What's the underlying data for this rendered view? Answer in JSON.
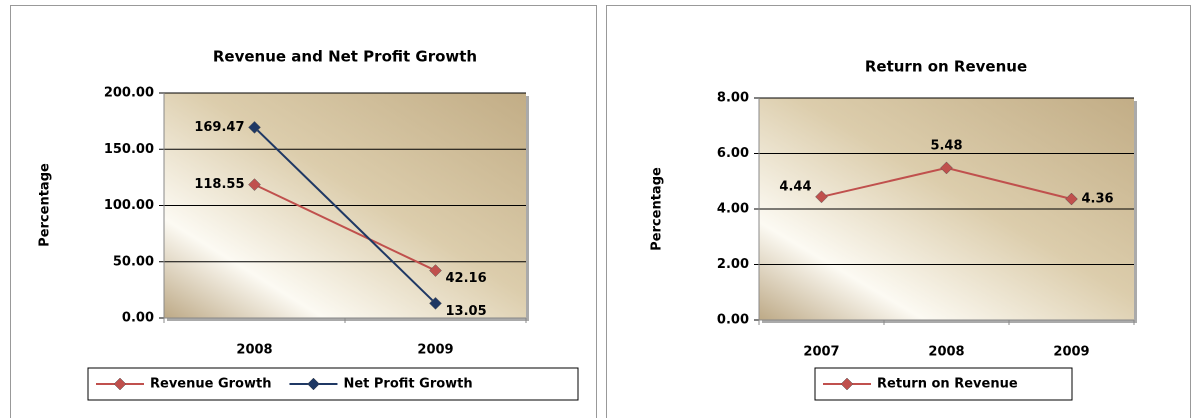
{
  "chart_data": [
    {
      "type": "line",
      "title": "Revenue and Net Profit Growth",
      "y_label": "Percentage",
      "categories": [
        "2008",
        "2009"
      ],
      "series": [
        {
          "name": "Revenue Growth",
          "color": "#c0504d",
          "values": [
            118.55,
            42.16
          ]
        },
        {
          "name": "Net Profit Growth",
          "color": "#1f3864",
          "values": [
            169.47,
            13.05
          ]
        }
      ],
      "ylim": [
        0,
        200
      ],
      "yticks": [
        {
          "value": 0,
          "label": "0.00"
        },
        {
          "value": 50,
          "label": "50.00"
        },
        {
          "value": 100,
          "label": "100.00"
        },
        {
          "value": 150,
          "label": "150.00"
        },
        {
          "value": 200,
          "label": "200.00"
        }
      ],
      "grid": true,
      "legend": "bottom"
    },
    {
      "type": "line",
      "title": "Return on Revenue",
      "y_label": "Percentage",
      "categories": [
        "2007",
        "2008",
        "2009"
      ],
      "series": [
        {
          "name": "Return on Revenue",
          "color": "#c0504d",
          "values": [
            4.44,
            5.48,
            4.36
          ]
        }
      ],
      "ylim": [
        0,
        8
      ],
      "yticks": [
        {
          "value": 0,
          "label": "0.00"
        },
        {
          "value": 2,
          "label": "2.00"
        },
        {
          "value": 4,
          "label": "4.00"
        },
        {
          "value": 6,
          "label": "6.00"
        },
        {
          "value": 8,
          "label": "8.00"
        }
      ],
      "grid": true,
      "legend": "bottom"
    }
  ]
}
